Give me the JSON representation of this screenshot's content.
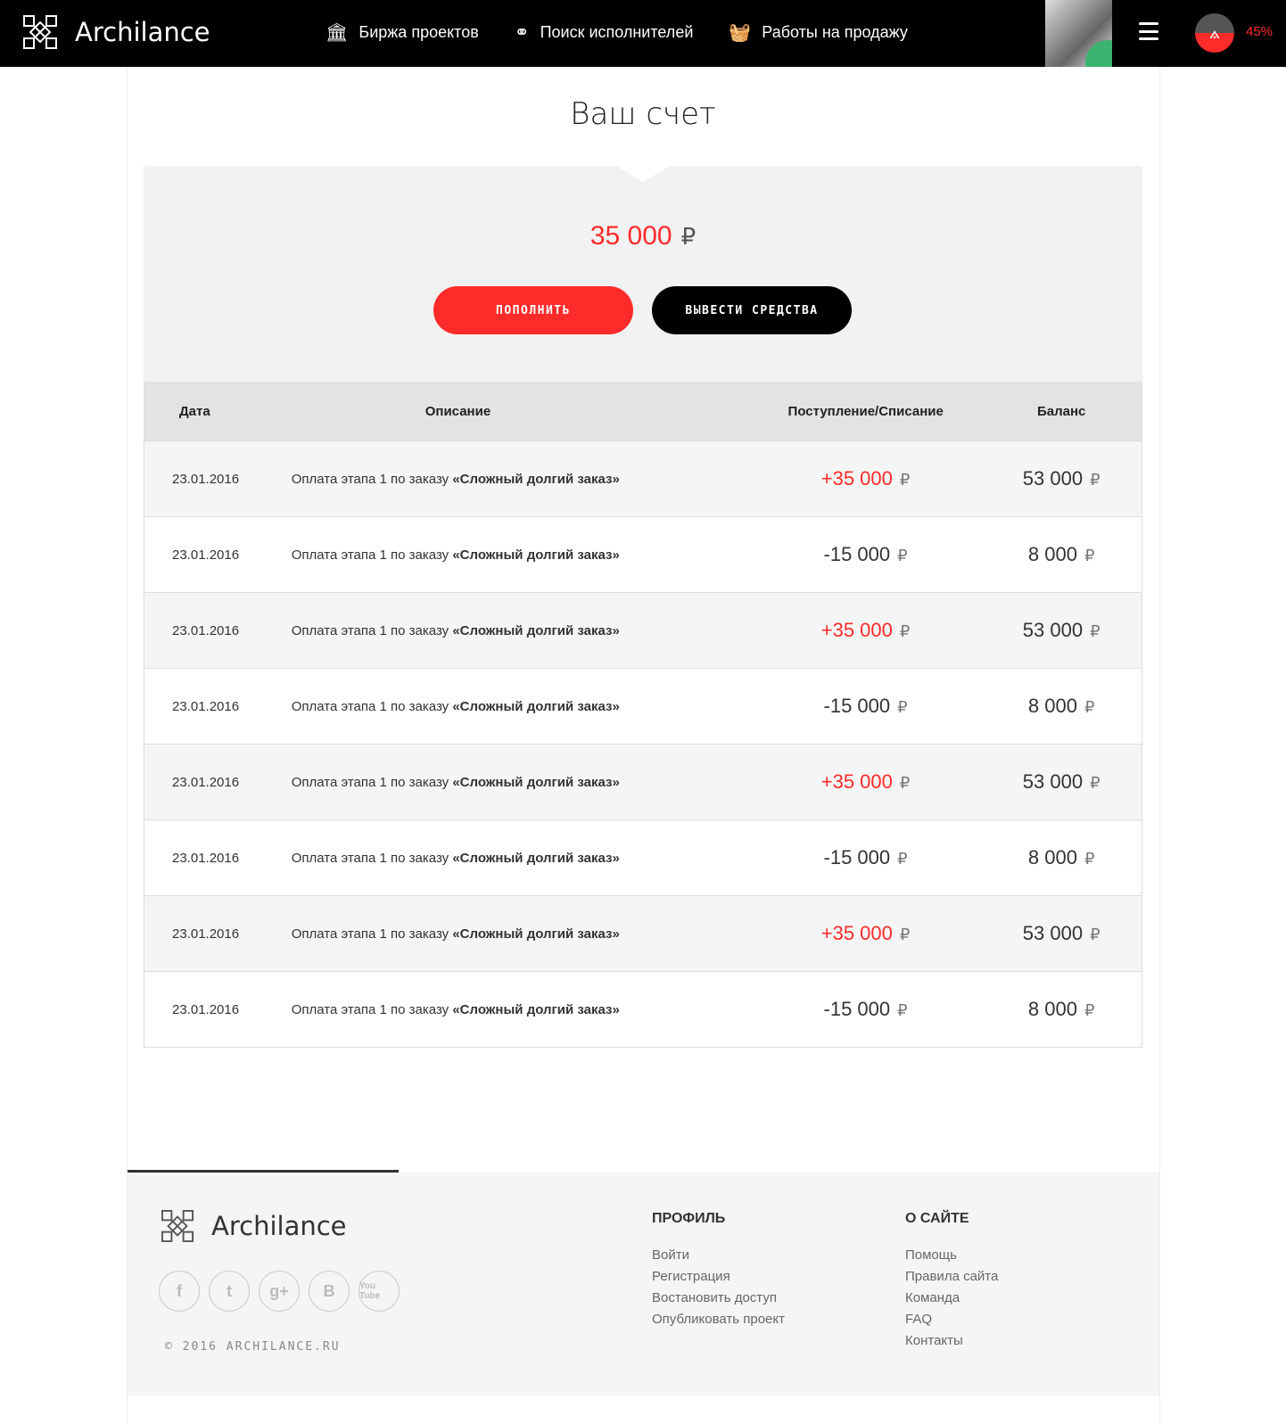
{
  "header": {
    "logo": "Archilance",
    "nav": [
      {
        "label": "Биржа проектов",
        "icon": "column-icon"
      },
      {
        "label": "Поиск исполнителей",
        "icon": "binoculars-icon"
      },
      {
        "label": "Работы на продажу",
        "icon": "basket-icon"
      }
    ],
    "progress": "45%",
    "progress_value": 45
  },
  "page": {
    "title": "Ваш счет",
    "balance": "35 000",
    "currency": "₽",
    "topup_label": "ПОПОЛНИТЬ",
    "withdraw_label": "ВЫВЕСТИ СРЕДСТВА"
  },
  "table": {
    "headers": [
      "Дата",
      "Описание",
      "Поступление/Списание",
      "Баланс"
    ],
    "rows": [
      {
        "date": "23.01.2016",
        "desc": "Оплата этапа 1 по заказу ",
        "order": "«Сложный долгий заказ»",
        "amount": "+35 000",
        "balance": "53 000"
      },
      {
        "date": "23.01.2016",
        "desc": "Оплата этапа 1 по заказу ",
        "order": "«Сложный долгий заказ»",
        "amount": "-15 000",
        "balance": "8 000"
      },
      {
        "date": "23.01.2016",
        "desc": "Оплата этапа 1 по заказу ",
        "order": "«Сложный долгий заказ»",
        "amount": "+35 000",
        "balance": "53 000"
      },
      {
        "date": "23.01.2016",
        "desc": "Оплата этапа 1 по заказу ",
        "order": "«Сложный долгий заказ»",
        "amount": "-15 000",
        "balance": "8 000"
      },
      {
        "date": "23.01.2016",
        "desc": "Оплата этапа 1 по заказу ",
        "order": "«Сложный долгий заказ»",
        "amount": "+35 000",
        "balance": "53 000"
      },
      {
        "date": "23.01.2016",
        "desc": "Оплата этапа 1 по заказу ",
        "order": "«Сложный долгий заказ»",
        "amount": "-15 000",
        "balance": "8 000"
      },
      {
        "date": "23.01.2016",
        "desc": "Оплата этапа 1 по заказу ",
        "order": "«Сложный долгий заказ»",
        "amount": "+35 000",
        "balance": "53 000"
      },
      {
        "date": "23.01.2016",
        "desc": "Оплата этапа 1 по заказу ",
        "order": "«Сложный долгий заказ»",
        "amount": "-15 000",
        "balance": "8 000"
      }
    ]
  },
  "footer": {
    "logo": "Archilance",
    "socials": [
      "f",
      "t",
      "g+",
      "B",
      "You Tube"
    ],
    "copyright": "© 2016 ARCHILANCE.RU",
    "profile": {
      "title": "ПРОФИЛЬ",
      "links": [
        "Войти",
        "Регистрация",
        "Востановить доступ",
        "Опубликовать проект"
      ]
    },
    "about": {
      "title": "О САЙТЕ",
      "links": [
        "Помощь",
        "Правила сайта",
        "Команда",
        "FAQ",
        "Контакты"
      ]
    }
  },
  "colors": {
    "accent": "#ff2b2b",
    "header_bg": "#000000"
  }
}
